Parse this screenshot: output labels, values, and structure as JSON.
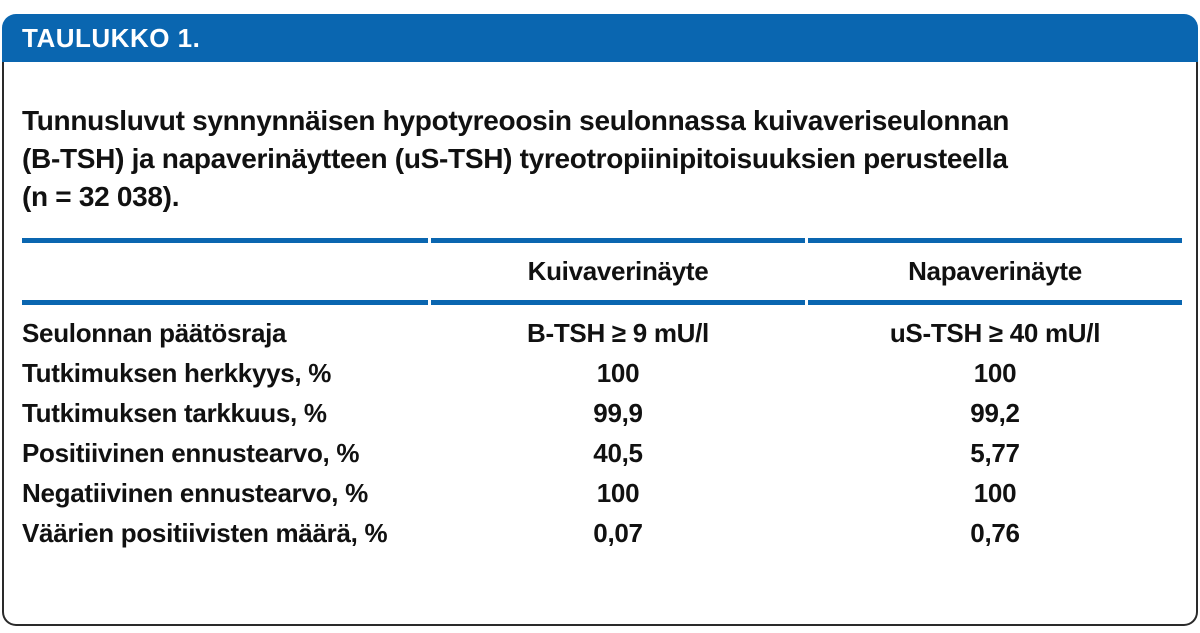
{
  "header": {
    "label": "TAULUKKO 1."
  },
  "caption": "Tunnusluvut synnynnäisen hypotyreoosin seulonnassa kuivaveriseulonnan\n(B-TSH) ja napaverinäytteen (uS-TSH) tyreotropiinipitoisuuksien perusteella\n(n = 32 038).",
  "table": {
    "columns": [
      "",
      "Kuivaverinäyte",
      "Napaverinäyte"
    ],
    "rows": [
      {
        "label": "Seulonnan päätösraja",
        "kuivaveri": "B-TSH ≥ 9 mU/l",
        "napaveri": "uS-TSH ≥ 40 mU/l"
      },
      {
        "label": "Tutkimuksen herkkyys, %",
        "kuivaveri": "100",
        "napaveri": "100"
      },
      {
        "label": "Tutkimuksen tarkkuus, %",
        "kuivaveri": "99,9",
        "napaveri": "99,2"
      },
      {
        "label": "Positiivinen ennustearvo, %",
        "kuivaveri": "40,5",
        "napaveri": "5,77"
      },
      {
        "label": "Negatiivinen ennustearvo, %",
        "kuivaveri": "100",
        "napaveri": "100"
      },
      {
        "label": "Väärien positiivisten määrä, %",
        "kuivaveri": "0,07",
        "napaveri": "0,76"
      }
    ]
  },
  "colors": {
    "accent_blue": "#0a66b0",
    "border_black": "#2a2a2a",
    "text_black": "#111111",
    "bar_text_white": "#ffffff"
  }
}
